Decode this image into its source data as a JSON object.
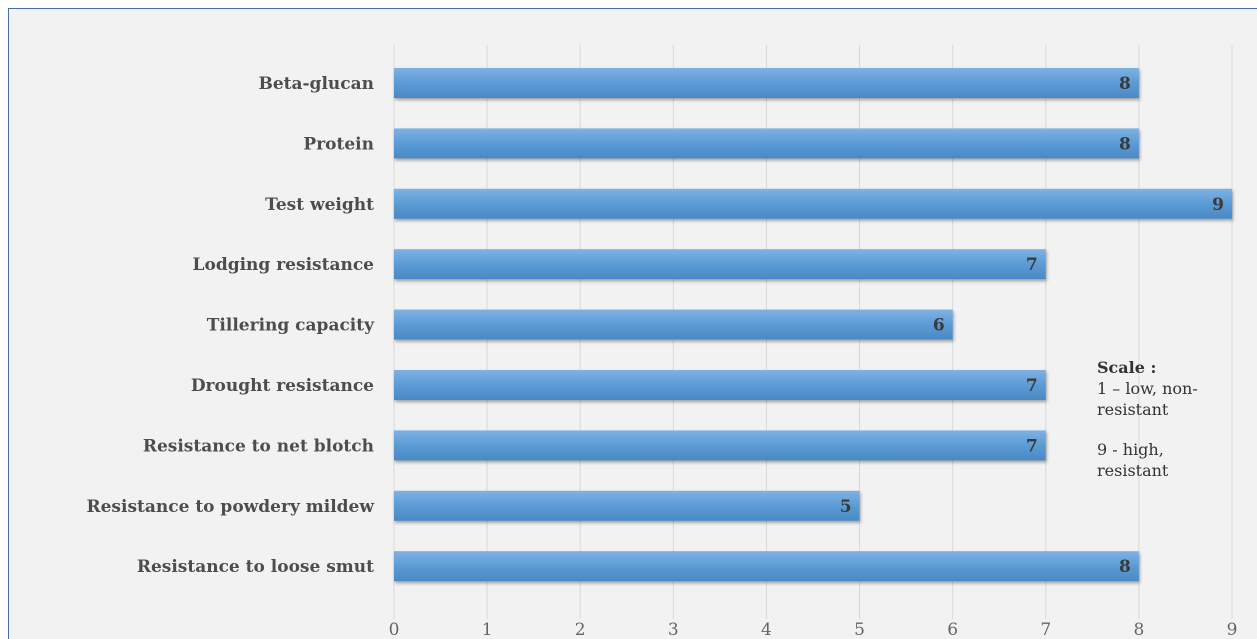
{
  "chart_data": {
    "type": "bar",
    "orientation": "horizontal",
    "categories": [
      "Beta-glucan",
      "Protein",
      "Test weight",
      "Lodging resistance",
      "Tillering capacity",
      "Drought resistance",
      "Resistance to net blotch",
      "Resistance to powdery mildew",
      "Resistance to loose smut"
    ],
    "values": [
      8,
      8,
      9,
      7,
      6,
      7,
      7,
      5,
      8
    ],
    "value_labels": [
      "8",
      "8",
      "9",
      "7",
      "6",
      "7",
      "7",
      "5",
      "8"
    ],
    "xlim": [
      0,
      9
    ],
    "x_ticks": [
      "0",
      "1",
      "2",
      "3",
      "4",
      "5",
      "6",
      "7",
      "8",
      "9"
    ],
    "grid": "vertical",
    "bar_color": "#5b9bd5",
    "data_labels": true
  },
  "annotation": {
    "title": "Scale :",
    "line1": "1 – low, non-",
    "line2": "resistant",
    "line3": "9 - high,",
    "line4": "resistant"
  }
}
